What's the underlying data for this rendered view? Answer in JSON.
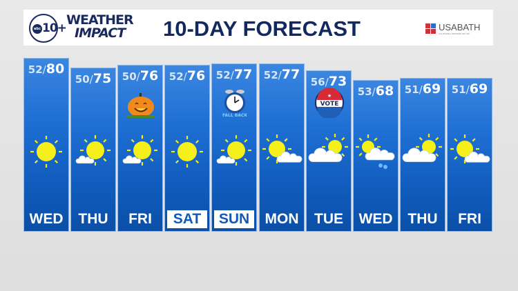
{
  "header": {
    "logo_text": "abc10+",
    "brand_line1": "WEATHER",
    "brand_line2": "IMPACT",
    "title": "10-DAY FORECAST",
    "sponsor": "USABATH",
    "sponsor_sub": "CALIFORNIA REMODELING INC"
  },
  "colors": {
    "navy": "#12285e",
    "tile_blue": "#1f6fd4",
    "sun": "#f5ef1a",
    "sponsor_blue": "#2e6fc4",
    "sponsor_red": "#c8343a"
  },
  "days": [
    {
      "day": "WED",
      "low": "52",
      "high": "80",
      "icon": "sunny",
      "highlight": false
    },
    {
      "day": "THU",
      "low": "50",
      "high": "75",
      "icon": "partly-cloudy",
      "highlight": false
    },
    {
      "day": "FRI",
      "low": "50",
      "high": "76",
      "icon": "partly-cloudy",
      "highlight": false,
      "badge": "pumpkin-icon"
    },
    {
      "day": "SAT",
      "low": "52",
      "high": "76",
      "icon": "sunny",
      "highlight": true
    },
    {
      "day": "SUN",
      "low": "52",
      "high": "77",
      "icon": "partly-cloudy",
      "highlight": true,
      "badge": "alarm-clock-icon",
      "badge_text": "FALL BACK"
    },
    {
      "day": "MON",
      "low": "52",
      "high": "77",
      "icon": "sun-cloud-right",
      "highlight": false
    },
    {
      "day": "TUE",
      "low": "56",
      "high": "73",
      "icon": "mostly-cloudy",
      "highlight": false,
      "badge": "vote-button-icon",
      "badge_text": "VOTE"
    },
    {
      "day": "WED",
      "low": "53",
      "high": "68",
      "icon": "showers",
      "highlight": false
    },
    {
      "day": "THU",
      "low": "51",
      "high": "69",
      "icon": "mostly-cloudy",
      "highlight": false
    },
    {
      "day": "FRI",
      "low": "51",
      "high": "69",
      "icon": "sun-cloud-right",
      "highlight": false
    }
  ]
}
